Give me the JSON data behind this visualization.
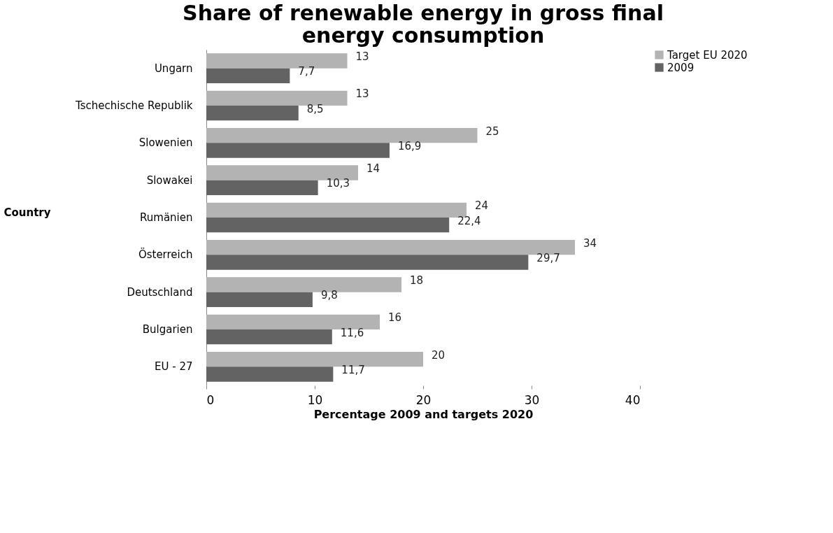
{
  "chart_data": {
    "type": "bar",
    "orientation": "horizontal",
    "title": [
      "Share of renewable energy in gross final",
      "energy consumption"
    ],
    "xlabel": "Percentage 2009 and targets 2020",
    "ylabel": "Country",
    "categories": [
      "Ungarn",
      "Tschechische Republik",
      "Slowenien",
      "Slowakei",
      "Rumänien",
      "Österreich",
      "Deutschland",
      "Bulgarien",
      "EU - 27"
    ],
    "series": [
      {
        "name": "Target EU 2020",
        "color": "#b3b3b3",
        "values": [
          13,
          13,
          25,
          14,
          24,
          34,
          18,
          16,
          20
        ],
        "value_labels": [
          "13",
          "13",
          "25",
          "14",
          "24",
          "34",
          "18",
          "16",
          "20"
        ]
      },
      {
        "name": "2009",
        "color": "#636363",
        "values": [
          7.7,
          8.5,
          16.9,
          10.3,
          22.4,
          29.7,
          9.8,
          11.6,
          11.7
        ],
        "value_labels": [
          "7,7",
          "8,5",
          "16,9",
          "10,3",
          "22,4",
          "29,7",
          "9,8",
          "11,6",
          "11,7"
        ]
      }
    ],
    "xlim": [
      0,
      40
    ],
    "xticks": [
      0,
      10,
      20,
      30,
      40
    ],
    "grid": false,
    "legend": "right"
  }
}
